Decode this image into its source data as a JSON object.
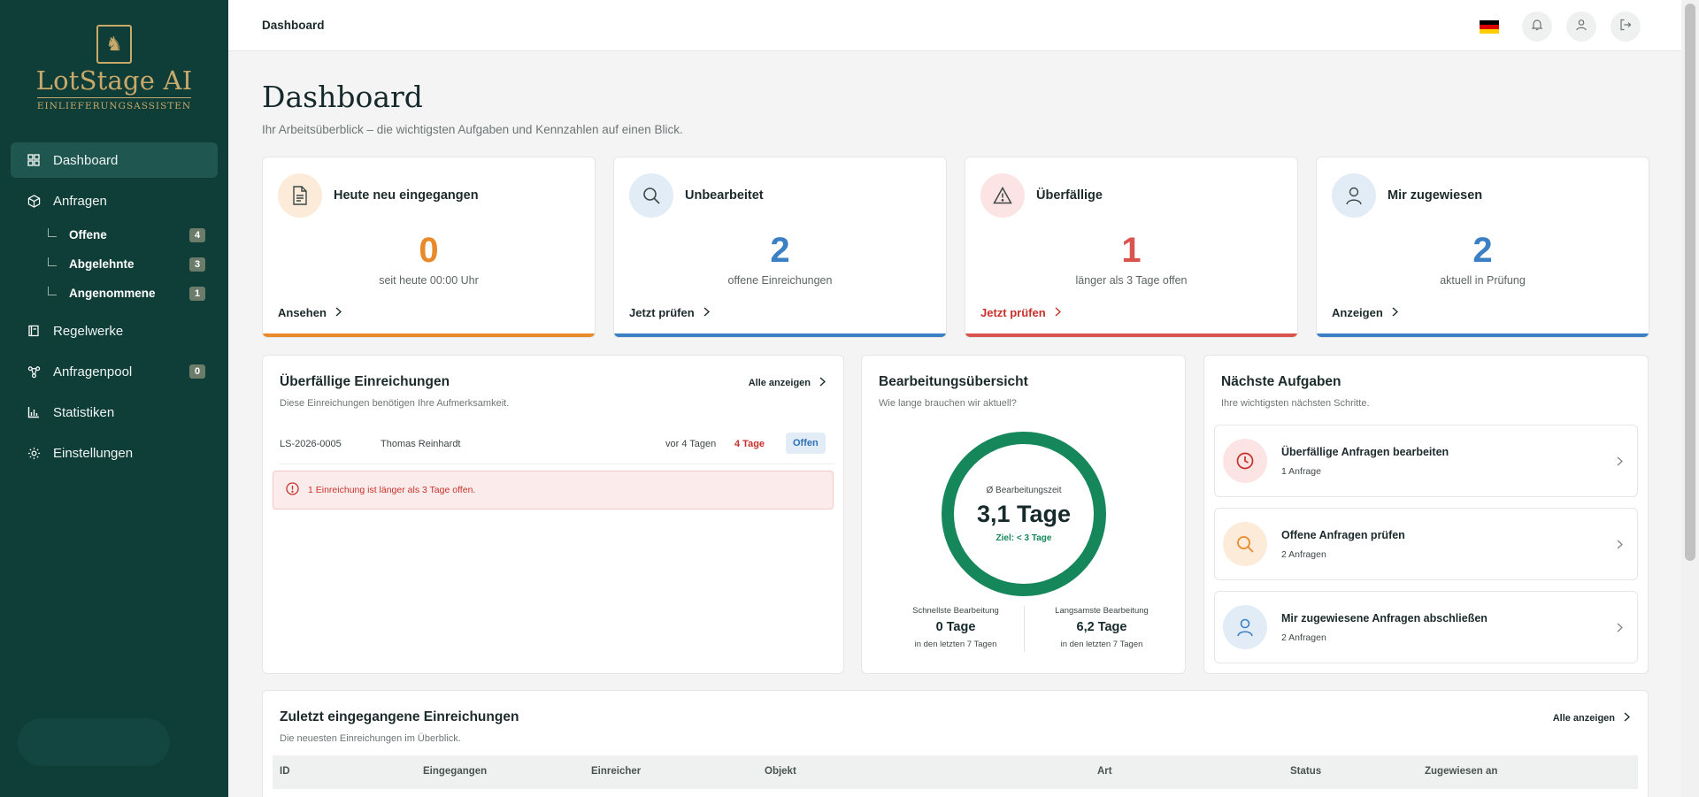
{
  "brand": {
    "name": "LotStage AI",
    "tagline": "EINLIEFERUNGSASSISTEN"
  },
  "sidebar": {
    "items": [
      {
        "label": "Dashboard",
        "icon": "grid-icon",
        "active": true
      },
      {
        "label": "Anfragen",
        "icon": "box-icon"
      },
      {
        "label": "Regelwerke",
        "icon": "book-icon"
      },
      {
        "label": "Anfragenpool",
        "icon": "network-icon",
        "count": "0"
      },
      {
        "label": "Statistiken",
        "icon": "bar-chart-icon"
      },
      {
        "label": "Einstellungen",
        "icon": "gear-icon"
      }
    ],
    "subitems": [
      {
        "label": "Offene",
        "count": "4"
      },
      {
        "label": "Abgelehnte",
        "count": "3"
      },
      {
        "label": "Angenommene",
        "count": "1"
      }
    ]
  },
  "topbar": {
    "title": "Dashboard"
  },
  "page": {
    "title": "Dashboard",
    "subtitle": "Ihr Arbeitsüberblick – die wichtigsten Aufgaben und Kennzahlen auf einen Blick."
  },
  "kpis": [
    {
      "title": "Heute neu eingegangen",
      "value": "0",
      "caption": "seit heute 00:00 Uhr",
      "link": "Ansehen",
      "color": "#e8892a",
      "icon": "document-icon"
    },
    {
      "title": "Unbearbeitet",
      "value": "2",
      "caption": "offene Einreichungen",
      "link": "Jetzt prüfen",
      "color": "#3b7fc4",
      "icon": "search-icon"
    },
    {
      "title": "Überfällige",
      "value": "1",
      "caption": "länger als 3 Tage offen",
      "link": "Jetzt prüfen",
      "color": "#d9534f",
      "icon": "warning-icon"
    },
    {
      "title": "Mir zugewiesen",
      "value": "2",
      "caption": "aktuell in Prüfung",
      "link": "Anzeigen",
      "color": "#3b7fc4",
      "icon": "user-icon"
    }
  ],
  "overdue": {
    "title": "Überfällige Einreichungen",
    "subtitle": "Diese Einreichungen benötigen Ihre Aufmerksamkeit.",
    "link": "Alle anzeigen",
    "row": {
      "id": "LS-2026-0005",
      "name": "Thomas Reinhardt",
      "age": "vor 4 Tagen",
      "days": "4 Tage",
      "status": "Offen"
    },
    "alert": "1 Einreichung ist länger als 3 Tage offen."
  },
  "processing": {
    "title": "Bearbeitungsübersicht",
    "subtitle": "Wie lange brauchen wir aktuell?",
    "gauge_label": "Ø Bearbeitungszeit",
    "gauge_value": "3,1 Tage",
    "goal": "Ziel: < 3 Tage",
    "fastest": {
      "label": "Schnellste Bearbeitung",
      "value": "0 Tage",
      "note": "in den letzten 7 Tagen"
    },
    "slowest": {
      "label": "Langsamste Bearbeitung",
      "value": "6,2 Tage",
      "note": "in den letzten 7 Tagen"
    }
  },
  "tasks": {
    "title": "Nächste Aufgaben",
    "subtitle": "Ihre wichtigsten nächsten Schritte.",
    "items": [
      {
        "title": "Überfällige Anfragen bearbeiten",
        "sub": "1 Anfrage",
        "icon": "clock-icon",
        "color": "#c7312b",
        "bg": "#fbe4e3"
      },
      {
        "title": "Offene Anfragen prüfen",
        "sub": "2 Anfragen",
        "icon": "search-icon",
        "color": "#e8892a",
        "bg": "#fdebd9"
      },
      {
        "title": "Mir zugewiesene Anfragen abschließen",
        "sub": "2 Anfragen",
        "icon": "user-icon",
        "color": "#3b7fc4",
        "bg": "#e1ecf7"
      }
    ]
  },
  "recent": {
    "title": "Zuletzt eingegangene Einreichungen",
    "subtitle": "Die neuesten Einreichungen im Überblick.",
    "link": "Alle anzeigen",
    "columns": [
      "ID",
      "Eingegangen",
      "Einreicher",
      "Objekt",
      "Art",
      "Status",
      "Zugewiesen an"
    ]
  }
}
